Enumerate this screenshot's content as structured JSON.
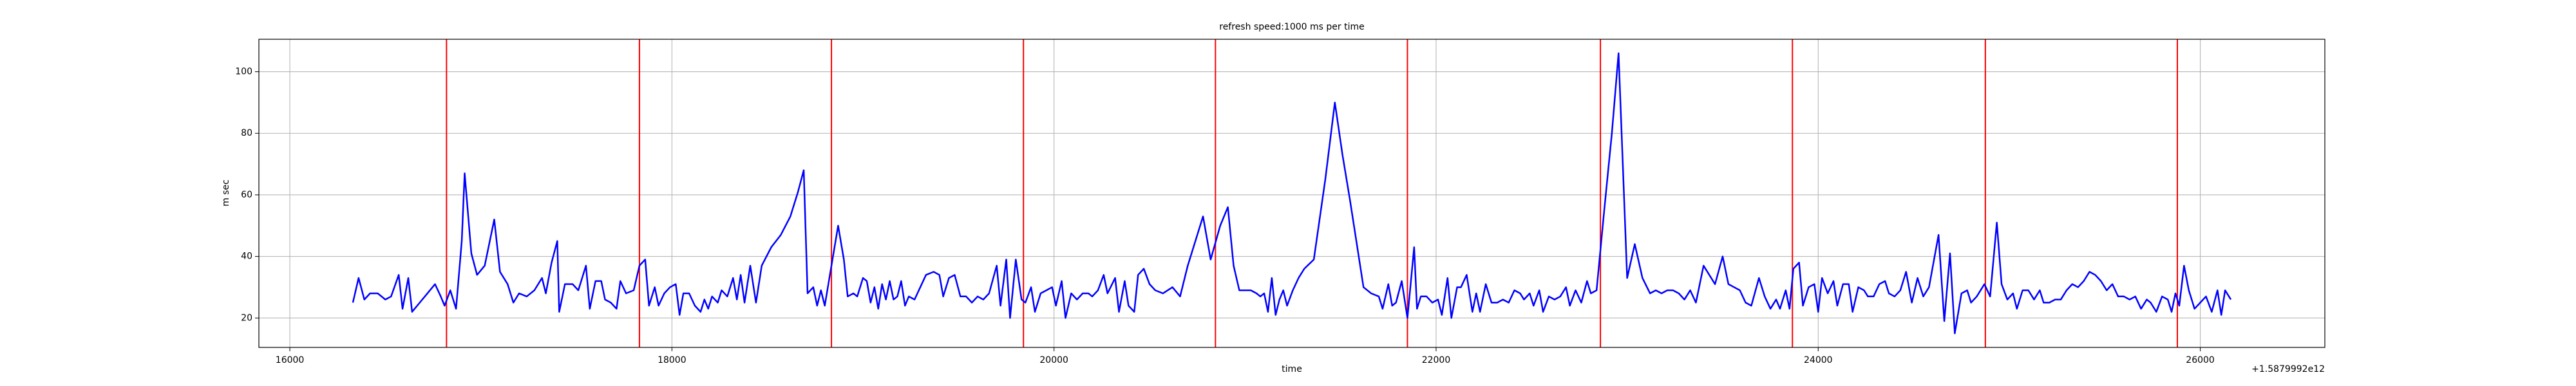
{
  "chart_data": {
    "type": "line",
    "title": "refresh speed:1000 ms per time",
    "xlabel": "time",
    "ylabel": "m sec",
    "x_offset_label": "+1.5879992e12",
    "color": "blue",
    "xlim": [
      15838,
      26652
    ],
    "ylim": [
      10.45,
      110.55
    ],
    "xticks": [
      16000,
      18000,
      20000,
      22000,
      24000,
      26000
    ],
    "yticks": [
      20,
      40,
      60,
      80,
      100
    ],
    "grid": true,
    "vlines": {
      "color": "red",
      "x": [
        16820,
        17830,
        18835,
        19840,
        20845,
        21850,
        22860,
        23865,
        24875,
        25880
      ]
    },
    "x": [
      16330,
      16360,
      16390,
      16420,
      16460,
      16500,
      16530,
      16570,
      16590,
      16620,
      16640,
      16680,
      16720,
      16760,
      16790,
      16810,
      16840,
      16870,
      16900,
      16915,
      16950,
      16980,
      17020,
      17070,
      17100,
      17140,
      17170,
      17200,
      17240,
      17280,
      17320,
      17340,
      17370,
      17400,
      17410,
      17440,
      17480,
      17510,
      17550,
      17570,
      17600,
      17630,
      17650,
      17680,
      17710,
      17730,
      17760,
      17800,
      17830,
      17860,
      17880,
      17910,
      17930,
      17960,
      17990,
      18020,
      18040,
      18060,
      18090,
      18120,
      18150,
      18170,
      18190,
      18210,
      18240,
      18260,
      18290,
      18320,
      18340,
      18360,
      18380,
      18410,
      18440,
      18470,
      18520,
      18570,
      18620,
      18660,
      18690,
      18710,
      18740,
      18760,
      18780,
      18800,
      18870,
      18900,
      18920,
      18950,
      18970,
      19000,
      19020,
      19040,
      19060,
      19080,
      19100,
      19120,
      19140,
      19160,
      19180,
      19200,
      19220,
      19240,
      19270,
      19300,
      19330,
      19370,
      19400,
      19420,
      19450,
      19480,
      19510,
      19540,
      19570,
      19600,
      19630,
      19660,
      19700,
      19720,
      19750,
      19770,
      19800,
      19830,
      19850,
      19880,
      19900,
      19930,
      19960,
      19990,
      20010,
      20040,
      20060,
      20090,
      20120,
      20150,
      20180,
      20200,
      20230,
      20260,
      20280,
      20320,
      20340,
      20370,
      20390,
      20420,
      20440,
      20470,
      20500,
      20530,
      20570,
      20620,
      20660,
      20700,
      20780,
      20820,
      20870,
      20910,
      20940,
      20970,
      21000,
      21030,
      21060,
      21080,
      21100,
      21120,
      21140,
      21160,
      21180,
      21200,
      21220,
      21250,
      21280,
      21310,
      21360,
      21420,
      21470,
      21510,
      21550,
      21590,
      21620,
      21660,
      21700,
      21720,
      21750,
      21770,
      21790,
      21820,
      21850,
      21885,
      21900,
      21920,
      21950,
      21980,
      22010,
      22030,
      22060,
      22080,
      22110,
      22130,
      22160,
      22190,
      22210,
      22230,
      22260,
      22290,
      22320,
      22350,
      22380,
      22410,
      22440,
      22460,
      22490,
      22510,
      22540,
      22560,
      22590,
      22620,
      22650,
      22680,
      22700,
      22730,
      22760,
      22790,
      22810,
      22840,
      22880,
      22920,
      22955,
      23000,
      23040,
      23080,
      23120,
      23150,
      23180,
      23210,
      23240,
      23270,
      23300,
      23330,
      23360,
      23400,
      23430,
      23460,
      23500,
      23530,
      23560,
      23590,
      23620,
      23650,
      23690,
      23720,
      23750,
      23780,
      23800,
      23830,
      23850,
      23870,
      23900,
      23920,
      23950,
      23980,
      24000,
      24020,
      24050,
      24080,
      24100,
      24130,
      24160,
      24180,
      24210,
      24240,
      24260,
      24290,
      24320,
      24350,
      24370,
      24400,
      24430,
      24460,
      24490,
      24520,
      24550,
      24580,
      24630,
      24660,
      24690,
      24715,
      24750,
      24780,
      24800,
      24830,
      24870,
      24900,
      24935,
      24960,
      24990,
      25020,
      25040,
      25070,
      25100,
      25130,
      25160,
      25180,
      25210,
      25240,
      25270,
      25300,
      25330,
      25360,
      25390,
      25420,
      25450,
      25480,
      25510,
      25540,
      25570,
      25600,
      25630,
      25660,
      25690,
      25720,
      25740,
      25770,
      25800,
      25830,
      25850,
      25870,
      25890,
      25915,
      25940,
      25970,
      26000,
      26030,
      26060,
      26090,
      26110,
      26130,
      26160
    ],
    "values": [
      25,
      33,
      26,
      28,
      28,
      26,
      27,
      34,
      23,
      33,
      22,
      25,
      28,
      31,
      27,
      24,
      29,
      23,
      45,
      67,
      41,
      34,
      37,
      52,
      35,
      31,
      25,
      28,
      27,
      29,
      33,
      28,
      38,
      45,
      22,
      31,
      31,
      29,
      37,
      23,
      32,
      32,
      26,
      25,
      23,
      32,
      28,
      29,
      37,
      39,
      24,
      30,
      24,
      28,
      30,
      31,
      21,
      28,
      28,
      24,
      22,
      26,
      23,
      27,
      25,
      29,
      27,
      33,
      26,
      34,
      25,
      37,
      25,
      37,
      43,
      47,
      53,
      61,
      68,
      28,
      30,
      24,
      29,
      24,
      50,
      39,
      27,
      28,
      27,
      33,
      32,
      25,
      30,
      23,
      31,
      26,
      32,
      26,
      27,
      32,
      24,
      27,
      26,
      30,
      34,
      35,
      34,
      27,
      33,
      34,
      27,
      27,
      25,
      27,
      26,
      28,
      37,
      24,
      39,
      20,
      39,
      26,
      25,
      30,
      22,
      28,
      29,
      30,
      24,
      32,
      20,
      28,
      26,
      28,
      28,
      27,
      29,
      34,
      28,
      33,
      22,
      32,
      24,
      22,
      34,
      36,
      31,
      29,
      28,
      30,
      27,
      37,
      53,
      39,
      50,
      56,
      37,
      29,
      29,
      29,
      28,
      27,
      28,
      22,
      33,
      21,
      26,
      29,
      24,
      29,
      33,
      36,
      39,
      65,
      90,
      73,
      58,
      42,
      30,
      28,
      27,
      23,
      31,
      24,
      25,
      32,
      20,
      43,
      23,
      27,
      27,
      25,
      26,
      21,
      33,
      20,
      30,
      30,
      34,
      22,
      28,
      22,
      31,
      25,
      25,
      26,
      25,
      29,
      28,
      26,
      28,
      24,
      29,
      22,
      27,
      26,
      27,
      30,
      24,
      29,
      25,
      32,
      28,
      29,
      55,
      80,
      106,
      33,
      44,
      33,
      28,
      29,
      28,
      29,
      29,
      28,
      26,
      29,
      25,
      37,
      34,
      31,
      40,
      31,
      30,
      29,
      25,
      24,
      33,
      27,
      23,
      26,
      23,
      29,
      23,
      36,
      38,
      24,
      30,
      31,
      22,
      33,
      28,
      32,
      24,
      31,
      31,
      22,
      30,
      29,
      27,
      27,
      31,
      32,
      28,
      27,
      29,
      35,
      25,
      33,
      27,
      30,
      47,
      19,
      41,
      15,
      28,
      29,
      25,
      27,
      31,
      27,
      51,
      31,
      26,
      28,
      23,
      29,
      29,
      26,
      29,
      25,
      25,
      26,
      26,
      29,
      31,
      30,
      32,
      35,
      34,
      32,
      29,
      31,
      27,
      27,
      26,
      27,
      23,
      26,
      25,
      22,
      27,
      26,
      22,
      28,
      24,
      37,
      29,
      23,
      25,
      27,
      22,
      29,
      21,
      29,
      26
    ]
  }
}
